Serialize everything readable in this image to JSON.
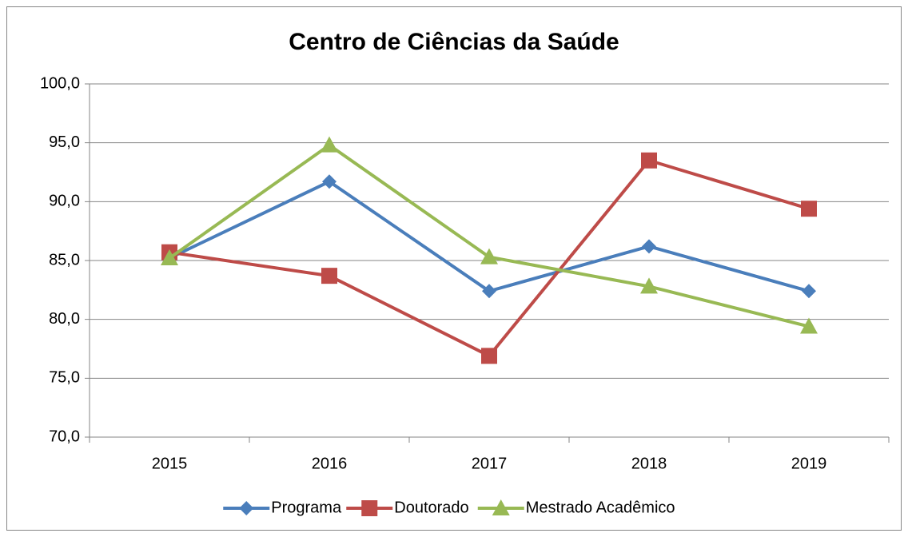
{
  "chart_data": {
    "type": "line",
    "title": "Centro de Ciências da Saúde",
    "categories": [
      "2015",
      "2016",
      "2017",
      "2018",
      "2019"
    ],
    "series": [
      {
        "name": "Programa",
        "color": "#4a7ebb",
        "marker": "diamond",
        "values": [
          85.2,
          91.7,
          82.4,
          86.2,
          82.4
        ]
      },
      {
        "name": "Doutorado",
        "color": "#be4b48",
        "marker": "square",
        "values": [
          85.7,
          83.7,
          76.9,
          93.5,
          89.4
        ]
      },
      {
        "name": "Mestrado Acadêmico",
        "color": "#98b954",
        "marker": "triangle",
        "values": [
          85.2,
          94.8,
          85.3,
          82.8,
          79.4
        ]
      }
    ],
    "ylim": [
      70,
      100
    ],
    "yticks": [
      {
        "value": 70,
        "label": "70,0"
      },
      {
        "value": 75,
        "label": "75,0"
      },
      {
        "value": 80,
        "label": "80,0"
      },
      {
        "value": 85,
        "label": "85,0"
      },
      {
        "value": 90,
        "label": "90,0"
      },
      {
        "value": 95,
        "label": "95,0"
      },
      {
        "value": 100,
        "label": "100,0"
      }
    ],
    "grid": true,
    "legend": "bottom"
  }
}
